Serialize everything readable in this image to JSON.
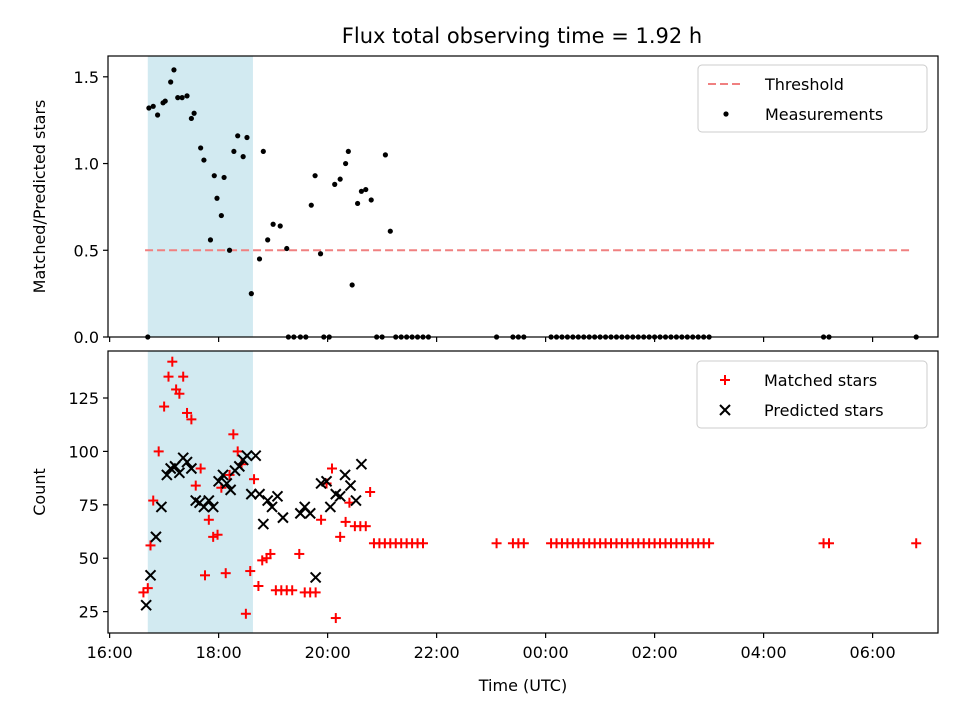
{
  "figure": {
    "title": "Flux total observing time = 1.92 h"
  },
  "chart_data": [
    {
      "type": "scatter",
      "ylabel": "Matched/Predicted stars",
      "xlabel": "",
      "xlim": [
        15.97,
        31.2
      ],
      "ylim": [
        0,
        1.62
      ],
      "yticks": [
        0.0,
        0.5,
        1.0,
        1.5
      ],
      "ytick_labels": [
        "0.0",
        "0.5",
        "1.0",
        "1.5"
      ],
      "shaded_region": {
        "x": [
          16.7,
          18.63
        ],
        "color": "#add8e6"
      },
      "threshold": {
        "name": "Threshold",
        "y": 0.5,
        "x": [
          16.65,
          30.7
        ],
        "color": "#f08080"
      },
      "legend": {
        "position": "upper right",
        "entries": [
          "Threshold",
          "Measurements"
        ]
      },
      "series": [
        {
          "name": "Measurements",
          "marker": "dot",
          "color": "#000000",
          "points": [
            [
              16.7,
              0.0
            ],
            [
              16.72,
              1.32
            ],
            [
              16.8,
              1.33
            ],
            [
              16.88,
              1.28
            ],
            [
              16.98,
              1.35
            ],
            [
              17.02,
              1.36
            ],
            [
              17.12,
              1.47
            ],
            [
              17.18,
              1.54
            ],
            [
              17.25,
              1.38
            ],
            [
              17.33,
              1.38
            ],
            [
              17.42,
              1.39
            ],
            [
              17.5,
              1.26
            ],
            [
              17.55,
              1.29
            ],
            [
              17.67,
              1.09
            ],
            [
              17.73,
              1.02
            ],
            [
              17.85,
              0.56
            ],
            [
              17.92,
              0.93
            ],
            [
              17.97,
              0.8
            ],
            [
              18.05,
              0.7
            ],
            [
              18.1,
              0.92
            ],
            [
              18.2,
              0.5
            ],
            [
              18.28,
              1.07
            ],
            [
              18.35,
              1.16
            ],
            [
              18.45,
              1.04
            ],
            [
              18.52,
              1.15
            ],
            [
              18.6,
              0.25
            ],
            [
              18.75,
              0.45
            ],
            [
              18.82,
              1.07
            ],
            [
              18.9,
              0.56
            ],
            [
              19.0,
              0.65
            ],
            [
              19.13,
              0.64
            ],
            [
              19.25,
              0.51
            ],
            [
              19.28,
              0.0
            ],
            [
              19.38,
              0.0
            ],
            [
              19.5,
              0.0
            ],
            [
              19.6,
              0.0
            ],
            [
              19.7,
              0.76
            ],
            [
              19.77,
              0.93
            ],
            [
              19.87,
              0.48
            ],
            [
              19.93,
              0.0
            ],
            [
              20.03,
              0.0
            ],
            [
              20.13,
              0.88
            ],
            [
              20.23,
              0.91
            ],
            [
              20.33,
              1.0
            ],
            [
              20.38,
              1.07
            ],
            [
              20.45,
              0.3
            ],
            [
              20.55,
              0.77
            ],
            [
              20.62,
              0.84
            ],
            [
              20.7,
              0.85
            ],
            [
              20.8,
              0.79
            ],
            [
              20.9,
              0.0
            ],
            [
              21.0,
              0.0
            ],
            [
              21.06,
              1.05
            ],
            [
              21.15,
              0.61
            ],
            [
              21.25,
              0.0
            ],
            [
              21.35,
              0.0
            ],
            [
              21.45,
              0.0
            ],
            [
              21.55,
              0.0
            ],
            [
              21.65,
              0.0
            ],
            [
              21.75,
              0.0
            ],
            [
              21.85,
              0.0
            ],
            [
              23.1,
              0.0
            ],
            [
              23.4,
              0.0
            ],
            [
              23.5,
              0.0
            ],
            [
              23.6,
              0.0
            ],
            [
              24.1,
              0.0
            ],
            [
              24.2,
              0.0
            ],
            [
              24.3,
              0.0
            ],
            [
              24.4,
              0.0
            ],
            [
              24.5,
              0.0
            ],
            [
              24.6,
              0.0
            ],
            [
              24.7,
              0.0
            ],
            [
              24.8,
              0.0
            ],
            [
              24.9,
              0.0
            ],
            [
              25.0,
              0.0
            ],
            [
              25.1,
              0.0
            ],
            [
              25.2,
              0.0
            ],
            [
              25.3,
              0.0
            ],
            [
              25.4,
              0.0
            ],
            [
              25.5,
              0.0
            ],
            [
              25.6,
              0.0
            ],
            [
              25.7,
              0.0
            ],
            [
              25.8,
              0.0
            ],
            [
              25.9,
              0.0
            ],
            [
              26.0,
              0.0
            ],
            [
              26.1,
              0.0
            ],
            [
              26.2,
              0.0
            ],
            [
              26.3,
              0.0
            ],
            [
              26.4,
              0.0
            ],
            [
              26.5,
              0.0
            ],
            [
              26.6,
              0.0
            ],
            [
              26.7,
              0.0
            ],
            [
              26.8,
              0.0
            ],
            [
              26.9,
              0.0
            ],
            [
              27.0,
              0.0
            ],
            [
              29.1,
              0.0
            ],
            [
              29.2,
              0.0
            ],
            [
              30.8,
              0.0
            ]
          ]
        }
      ]
    },
    {
      "type": "scatter",
      "ylabel": "Count",
      "xlabel": "Time (UTC)",
      "xlim": [
        15.97,
        31.2
      ],
      "ylim": [
        15,
        147
      ],
      "yticks": [
        25,
        50,
        75,
        100,
        125
      ],
      "ytick_labels": [
        "25",
        "50",
        "75",
        "100",
        "125"
      ],
      "xticks": [
        16,
        18,
        20,
        22,
        24,
        26,
        28,
        30
      ],
      "xtick_labels": [
        "16:00",
        "18:00",
        "20:00",
        "22:00",
        "00:00",
        "02:00",
        "04:00",
        "06:00"
      ],
      "shaded_region": {
        "x": [
          16.7,
          18.63
        ],
        "color": "#add8e6"
      },
      "legend": {
        "position": "upper right",
        "entries": [
          "Matched stars",
          "Predicted stars"
        ]
      },
      "series": [
        {
          "name": "Matched stars",
          "marker": "plus",
          "color": "#ff0000",
          "points": [
            [
              16.62,
              34
            ],
            [
              16.7,
              36
            ],
            [
              16.75,
              56
            ],
            [
              16.8,
              77
            ],
            [
              16.9,
              100
            ],
            [
              17.0,
              121
            ],
            [
              17.08,
              135
            ],
            [
              17.15,
              142
            ],
            [
              17.22,
              129
            ],
            [
              17.28,
              127
            ],
            [
              17.35,
              135
            ],
            [
              17.42,
              118
            ],
            [
              17.5,
              115
            ],
            [
              17.58,
              84
            ],
            [
              17.67,
              92
            ],
            [
              17.75,
              42
            ],
            [
              17.82,
              68
            ],
            [
              17.9,
              60
            ],
            [
              17.98,
              61
            ],
            [
              18.05,
              83
            ],
            [
              18.13,
              43
            ],
            [
              18.2,
              89
            ],
            [
              18.27,
              108
            ],
            [
              18.35,
              100
            ],
            [
              18.42,
              94
            ],
            [
              18.5,
              24
            ],
            [
              18.58,
              44
            ],
            [
              18.65,
              87
            ],
            [
              18.73,
              37
            ],
            [
              18.8,
              49
            ],
            [
              18.88,
              50
            ],
            [
              18.95,
              52
            ],
            [
              19.05,
              35
            ],
            [
              19.15,
              35
            ],
            [
              19.25,
              35
            ],
            [
              19.35,
              35
            ],
            [
              19.48,
              52
            ],
            [
              19.58,
              34
            ],
            [
              19.68,
              34
            ],
            [
              19.78,
              34
            ],
            [
              19.88,
              68
            ],
            [
              19.98,
              85
            ],
            [
              20.08,
              92
            ],
            [
              20.15,
              22
            ],
            [
              20.23,
              60
            ],
            [
              20.33,
              67
            ],
            [
              20.4,
              76
            ],
            [
              20.5,
              65
            ],
            [
              20.6,
              65
            ],
            [
              20.7,
              65
            ],
            [
              20.78,
              81
            ],
            [
              20.85,
              57
            ],
            [
              20.95,
              57
            ],
            [
              21.05,
              57
            ],
            [
              21.15,
              57
            ],
            [
              21.25,
              57
            ],
            [
              21.35,
              57
            ],
            [
              21.45,
              57
            ],
            [
              21.55,
              57
            ],
            [
              21.65,
              57
            ],
            [
              21.75,
              57
            ],
            [
              23.1,
              57
            ],
            [
              23.4,
              57
            ],
            [
              23.5,
              57
            ],
            [
              23.6,
              57
            ],
            [
              24.1,
              57
            ],
            [
              24.2,
              57
            ],
            [
              24.3,
              57
            ],
            [
              24.4,
              57
            ],
            [
              24.5,
              57
            ],
            [
              24.6,
              57
            ],
            [
              24.7,
              57
            ],
            [
              24.8,
              57
            ],
            [
              24.9,
              57
            ],
            [
              25.0,
              57
            ],
            [
              25.1,
              57
            ],
            [
              25.2,
              57
            ],
            [
              25.3,
              57
            ],
            [
              25.4,
              57
            ],
            [
              25.5,
              57
            ],
            [
              25.6,
              57
            ],
            [
              25.7,
              57
            ],
            [
              25.8,
              57
            ],
            [
              25.9,
              57
            ],
            [
              26.0,
              57
            ],
            [
              26.1,
              57
            ],
            [
              26.2,
              57
            ],
            [
              26.3,
              57
            ],
            [
              26.4,
              57
            ],
            [
              26.5,
              57
            ],
            [
              26.6,
              57
            ],
            [
              26.7,
              57
            ],
            [
              26.8,
              57
            ],
            [
              26.9,
              57
            ],
            [
              27.0,
              57
            ],
            [
              29.1,
              57
            ],
            [
              29.2,
              57
            ],
            [
              30.8,
              57
            ]
          ]
        },
        {
          "name": "Predicted stars",
          "marker": "x",
          "color": "#000000",
          "points": [
            [
              16.67,
              28
            ],
            [
              16.75,
              42
            ],
            [
              16.85,
              60
            ],
            [
              16.95,
              74
            ],
            [
              17.05,
              89
            ],
            [
              17.12,
              92
            ],
            [
              17.2,
              93
            ],
            [
              17.28,
              90
            ],
            [
              17.35,
              97
            ],
            [
              17.42,
              95
            ],
            [
              17.5,
              92
            ],
            [
              17.58,
              77
            ],
            [
              17.65,
              76
            ],
            [
              17.73,
              74
            ],
            [
              17.82,
              77
            ],
            [
              17.9,
              74
            ],
            [
              18.0,
              86
            ],
            [
              18.08,
              89
            ],
            [
              18.15,
              85
            ],
            [
              18.22,
              82
            ],
            [
              18.3,
              91
            ],
            [
              18.38,
              93
            ],
            [
              18.45,
              96
            ],
            [
              18.52,
              98
            ],
            [
              18.6,
              80
            ],
            [
              18.68,
              98
            ],
            [
              18.75,
              80
            ],
            [
              18.82,
              66
            ],
            [
              18.9,
              77
            ],
            [
              18.98,
              74
            ],
            [
              19.08,
              79
            ],
            [
              19.18,
              69
            ],
            [
              19.5,
              71
            ],
            [
              19.58,
              74
            ],
            [
              19.68,
              71
            ],
            [
              19.78,
              41
            ],
            [
              19.88,
              85
            ],
            [
              19.98,
              86
            ],
            [
              20.05,
              74
            ],
            [
              20.15,
              80
            ],
            [
              20.23,
              79
            ],
            [
              20.32,
              89
            ],
            [
              20.42,
              84
            ],
            [
              20.52,
              77
            ],
            [
              20.62,
              94
            ]
          ]
        }
      ]
    }
  ]
}
